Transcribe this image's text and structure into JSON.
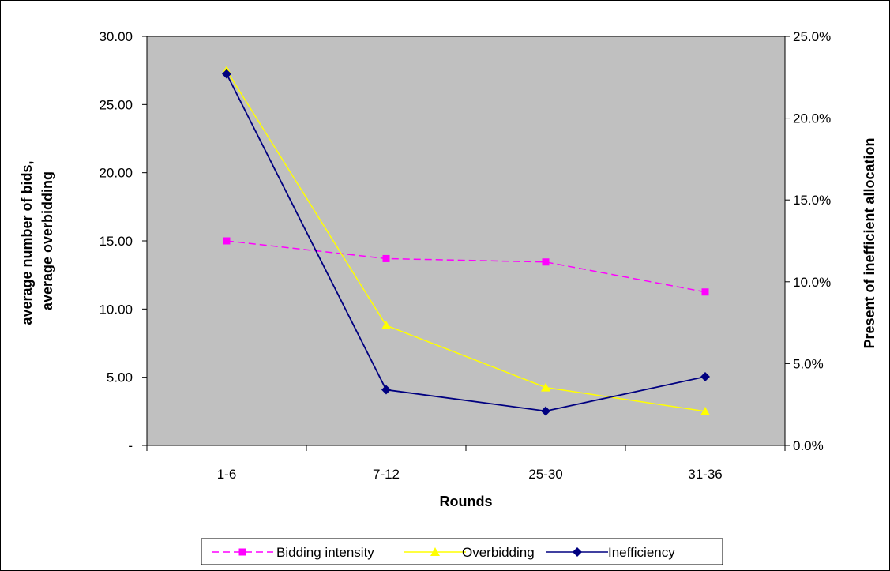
{
  "chart_data": {
    "type": "line",
    "categories": [
      "1-6",
      "7-12",
      "25-30",
      "31-36"
    ],
    "xlabel": "Rounds",
    "ylabel_left": "average number of bids, average overbidding",
    "ylabel_right": "Present of inefficient allocation",
    "ylim_left": [
      0,
      30
    ],
    "ylim_right": [
      0,
      0.25
    ],
    "left_ticks": [
      "-",
      "5.00",
      "10.00",
      "15.00",
      "20.00",
      "25.00",
      "30.00"
    ],
    "right_ticks": [
      "0.0%",
      "5.0%",
      "10.0%",
      "15.0%",
      "20.0%",
      "25.0%"
    ],
    "grid": false,
    "plot_background": "#c0c0c0",
    "legend_position": "bottom",
    "series": [
      {
        "name": "Bidding intensity",
        "axis": "left",
        "values": [
          15.0,
          13.7,
          13.45,
          11.25
        ],
        "color": "#ff00ff",
        "dashed": true,
        "marker": "square"
      },
      {
        "name": "Overbidding",
        "axis": "left",
        "values": [
          27.5,
          8.8,
          4.25,
          2.5
        ],
        "color": "#ffff00",
        "dashed": false,
        "marker": "triangle"
      },
      {
        "name": "Inefficiency",
        "axis": "right",
        "values": [
          0.227,
          0.034,
          0.021,
          0.042
        ],
        "color": "#000080",
        "dashed": false,
        "marker": "diamond"
      }
    ]
  }
}
